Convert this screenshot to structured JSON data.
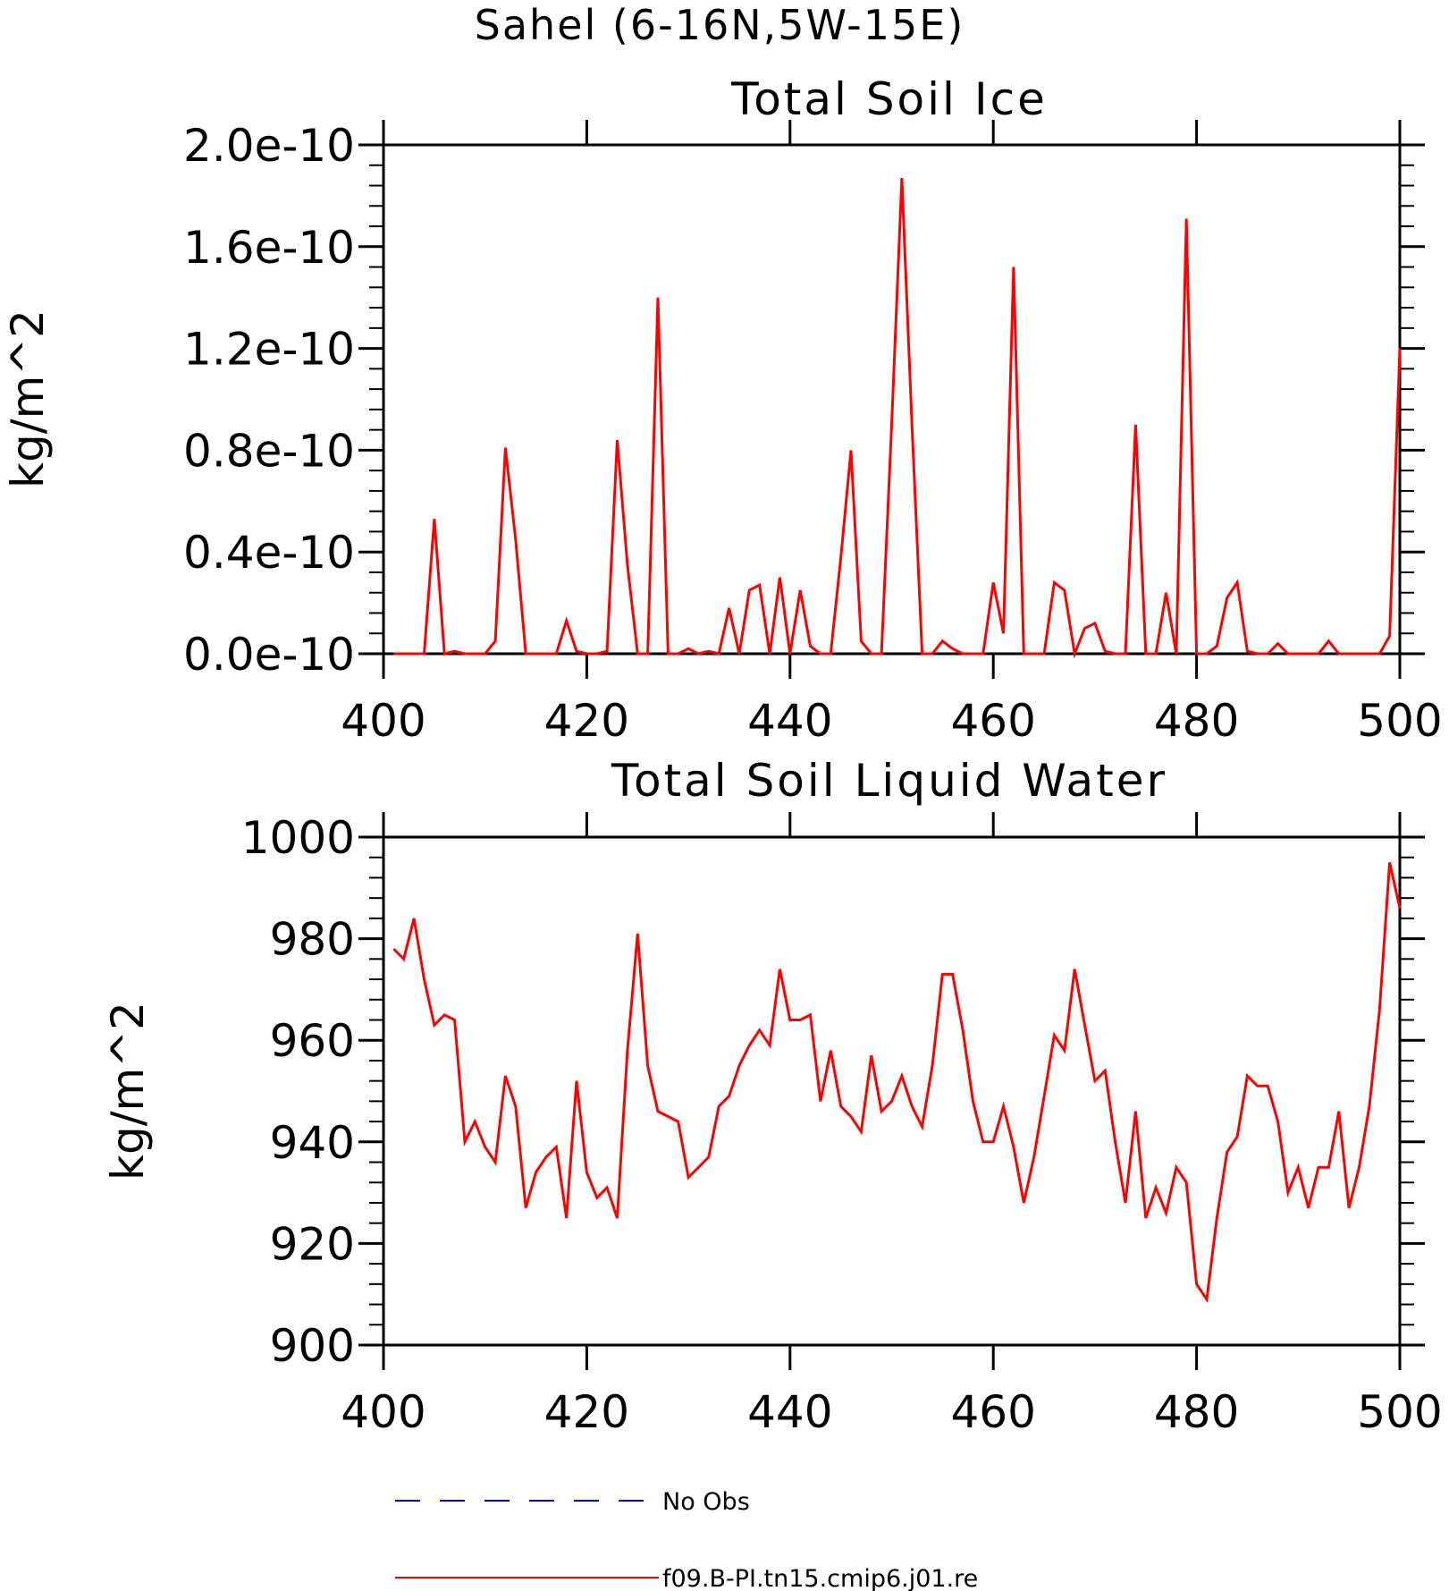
{
  "figure_title": "Sahel (6-16N,5W-15E)",
  "legend": [
    {
      "label": "No Obs",
      "color": "#0000ff",
      "style": "dashed"
    },
    {
      "label": "f09.B-PI.tn15.cmip6.j01.re",
      "color": "#ff0000",
      "style": "solid"
    }
  ],
  "chart_data": [
    {
      "type": "line",
      "title": "Total Soil Ice",
      "xlabel": "",
      "ylabel": "kg/m^2",
      "xlim": [
        400,
        500
      ],
      "ylim": [
        0.0,
        2.0
      ],
      "xticks": [
        400,
        420,
        440,
        460,
        480,
        500
      ],
      "yticks": [
        0.0,
        0.4,
        0.8,
        1.2,
        1.6,
        2.0
      ],
      "ytick_labels": [
        "0.0e-10",
        "0.4e-10",
        "0.8e-10",
        "1.2e-10",
        "1.6e-10",
        "2.0e-10"
      ],
      "y_unit": "e-10",
      "grid": false,
      "series": [
        {
          "name": "f09.B-PI.tn15.cmip6.j01.re",
          "color": "#ff0000",
          "x": [
            401,
            402,
            403,
            404,
            405,
            406,
            407,
            408,
            409,
            410,
            411,
            412,
            413,
            414,
            415,
            416,
            417,
            418,
            419,
            420,
            421,
            422,
            423,
            424,
            425,
            426,
            427,
            428,
            429,
            430,
            431,
            432,
            433,
            434,
            435,
            436,
            437,
            438,
            439,
            440,
            441,
            442,
            443,
            444,
            445,
            446,
            447,
            448,
            449,
            450,
            451,
            452,
            453,
            454,
            455,
            456,
            457,
            458,
            459,
            460,
            461,
            462,
            463,
            464,
            465,
            466,
            467,
            468,
            469,
            470,
            471,
            472,
            473,
            474,
            475,
            476,
            477,
            478,
            479,
            480,
            481,
            482,
            483,
            484,
            485,
            486,
            487,
            488,
            489,
            490,
            491,
            492,
            493,
            494,
            495,
            496,
            497,
            498,
            499,
            500
          ],
          "values": [
            0,
            0,
            0,
            0,
            0.53,
            0,
            0.01,
            0,
            0,
            0,
            0.05,
            0.81,
            0.45,
            0,
            0,
            0,
            0,
            0.13,
            0.01,
            0,
            0,
            0.01,
            0.84,
            0.35,
            0,
            0,
            1.4,
            0,
            0,
            0.02,
            0,
            0.01,
            0,
            0.18,
            0,
            0.25,
            0.27,
            0,
            0.3,
            0,
            0.25,
            0.03,
            0,
            0,
            0.38,
            0.8,
            0.05,
            0,
            0,
            0.9,
            1.87,
            0.9,
            0,
            0,
            0.05,
            0.02,
            0,
            0,
            0,
            0.28,
            0.08,
            1.52,
            0,
            0,
            0,
            0.28,
            0.25,
            0,
            0.1,
            0.12,
            0.01,
            0,
            0,
            0.9,
            0,
            0,
            0.24,
            0,
            1.71,
            0,
            0,
            0.03,
            0.22,
            0.28,
            0.01,
            0,
            0,
            0.04,
            0,
            0,
            0,
            0,
            0.05,
            0,
            0,
            0,
            0,
            0,
            0.07,
            1.2
          ]
        }
      ]
    },
    {
      "type": "line",
      "title": "Total Soil Liquid Water",
      "xlabel": "",
      "ylabel": "kg/m^2",
      "xlim": [
        400,
        500
      ],
      "ylim": [
        900,
        1000
      ],
      "xticks": [
        400,
        420,
        440,
        460,
        480,
        500
      ],
      "yticks": [
        900,
        920,
        940,
        960,
        980,
        1000
      ],
      "ytick_labels": [
        "900",
        "920",
        "940",
        "960",
        "980",
        "1000"
      ],
      "grid": false,
      "series": [
        {
          "name": "f09.B-PI.tn15.cmip6.j01.re",
          "color": "#ff0000",
          "x": [
            401,
            402,
            403,
            404,
            405,
            406,
            407,
            408,
            409,
            410,
            411,
            412,
            413,
            414,
            415,
            416,
            417,
            418,
            419,
            420,
            421,
            422,
            423,
            424,
            425,
            426,
            427,
            428,
            429,
            430,
            431,
            432,
            433,
            434,
            435,
            436,
            437,
            438,
            439,
            440,
            441,
            442,
            443,
            444,
            445,
            446,
            447,
            448,
            449,
            450,
            451,
            452,
            453,
            454,
            455,
            456,
            457,
            458,
            459,
            460,
            461,
            462,
            463,
            464,
            465,
            466,
            467,
            468,
            469,
            470,
            471,
            472,
            473,
            474,
            475,
            476,
            477,
            478,
            479,
            480,
            481,
            482,
            483,
            484,
            485,
            486,
            487,
            488,
            489,
            490,
            491,
            492,
            493,
            494,
            495,
            496,
            497,
            498,
            499,
            500
          ],
          "values": [
            978,
            976,
            984,
            972,
            963,
            965,
            964,
            940,
            944,
            939,
            936,
            953,
            947,
            927,
            934,
            937,
            939,
            925,
            952,
            934,
            929,
            931,
            925,
            958,
            981,
            955,
            946,
            945,
            944,
            933,
            935,
            937,
            947,
            949,
            955,
            959,
            962,
            959,
            974,
            964,
            964,
            965,
            948,
            958,
            947,
            945,
            942,
            957,
            946,
            948,
            953,
            947,
            943,
            955,
            973,
            973,
            962,
            948,
            940,
            940,
            947,
            939,
            928,
            937,
            949,
            961,
            958,
            974,
            963,
            952,
            954,
            940,
            928,
            946,
            925,
            931,
            926,
            935,
            932,
            912,
            909,
            925,
            938,
            941,
            953,
            951,
            951,
            944,
            930,
            935,
            927,
            935,
            935,
            946,
            927,
            935,
            947,
            966,
            995,
            986
          ]
        }
      ]
    }
  ]
}
